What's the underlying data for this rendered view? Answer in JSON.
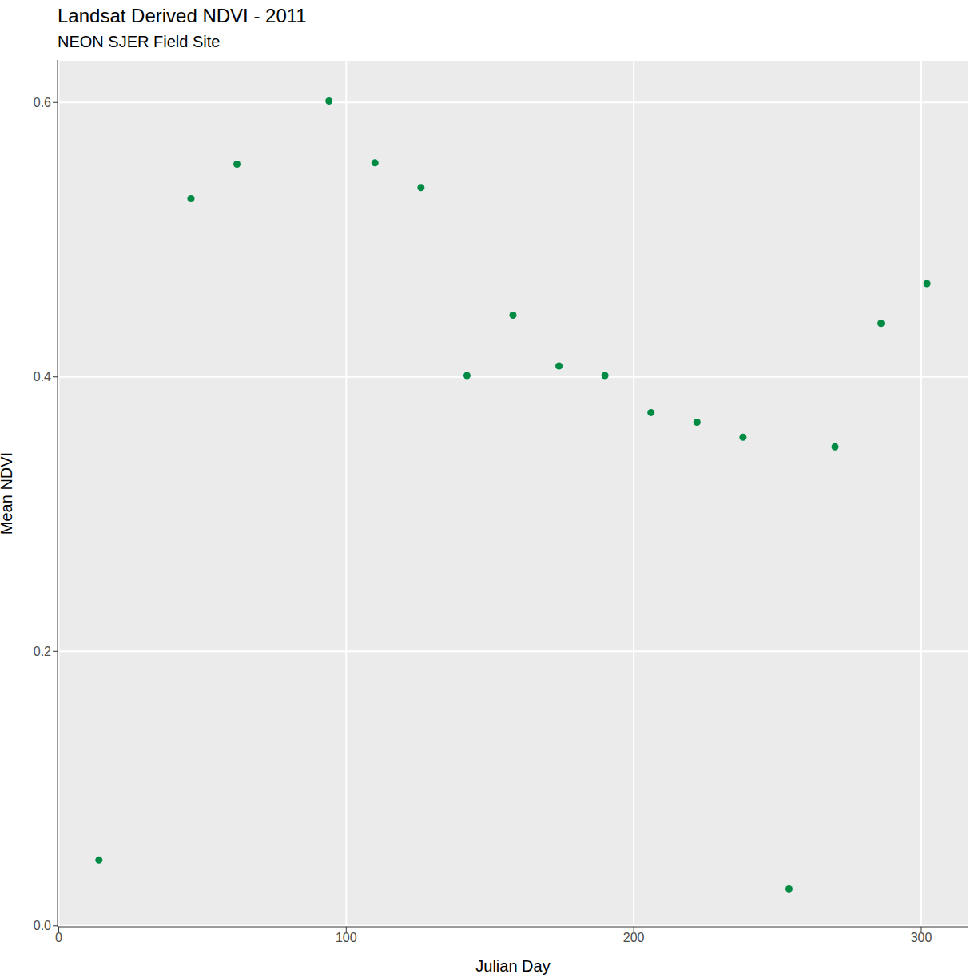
{
  "chart_data": {
    "type": "scatter",
    "title": "Landsat Derived NDVI - 2011",
    "subtitle": "NEON SJER Field Site",
    "x_label": "Julian Day",
    "y_label": "Mean NDVI",
    "x": [
      14,
      46,
      62,
      94,
      110,
      126,
      142,
      158,
      174,
      190,
      206,
      222,
      238,
      254,
      270,
      286,
      302
    ],
    "values": [
      0.048,
      0.53,
      0.555,
      0.601,
      0.556,
      0.538,
      0.401,
      0.445,
      0.408,
      0.401,
      0.374,
      0.367,
      0.356,
      0.027,
      0.349,
      0.439,
      0.468
    ],
    "color": "#008B45",
    "marker": "circle",
    "xlim": [
      -0.4,
      316.4
    ],
    "xticks": [
      0,
      100,
      200,
      300
    ],
    "ylim": [
      -0.0007,
      0.631
    ],
    "yticks": [
      {
        "value": 0,
        "label": "0.0"
      },
      0.2,
      0.4,
      0.6
    ],
    "grid": true
  }
}
